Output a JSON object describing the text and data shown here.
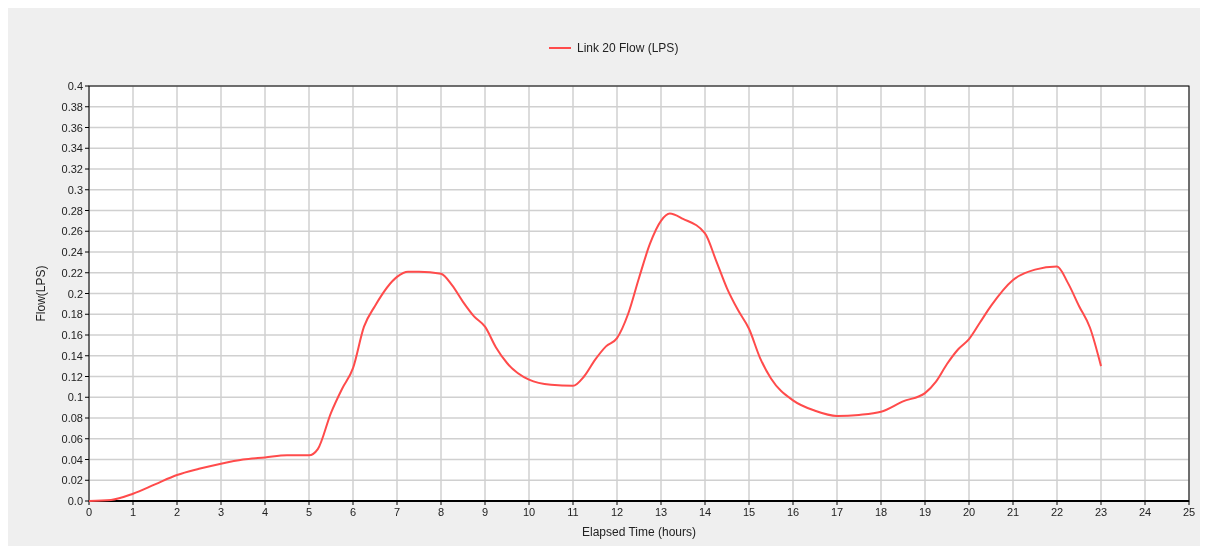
{
  "chart_data": {
    "type": "line",
    "xlabel": "Elapsed Time (hours)",
    "ylabel": "Flow(LPS)",
    "xlim": [
      0,
      25
    ],
    "xticks": [
      0,
      1,
      2,
      3,
      4,
      5,
      6,
      7,
      8,
      9,
      10,
      11,
      12,
      13,
      14,
      15,
      16,
      17,
      18,
      19,
      20,
      21,
      22,
      23,
      24,
      25
    ],
    "ylim": [
      0,
      0.4
    ],
    "yticks": [
      {
        "value": 0,
        "label": "0.0"
      },
      0.02,
      0.04,
      0.06,
      0.08,
      0.1,
      0.12,
      0.14,
      0.16,
      0.18,
      0.2,
      0.22,
      0.24,
      0.26,
      0.28,
      0.3,
      0.32,
      0.34,
      0.36,
      0.38,
      0.4
    ],
    "grid": true,
    "legend": "top",
    "marker": "none",
    "line_style": "solid",
    "series": [
      {
        "name": "Link 20 Flow (LPS)",
        "color": "#ff4b4b",
        "x": [
          0,
          0.5,
          1,
          1.5,
          2,
          2.5,
          3,
          3.5,
          4,
          4.5,
          5,
          5.2,
          5.5,
          5.75,
          6,
          6.25,
          6.5,
          7,
          7.25,
          7.5,
          8,
          8.25,
          8.5,
          8.75,
          9,
          9.25,
          9.5,
          10,
          10.5,
          11,
          11.25,
          11.5,
          11.75,
          12,
          12.25,
          12.5,
          12.75,
          13,
          13.2,
          13.5,
          14,
          14.25,
          14.5,
          14.75,
          15,
          15.25,
          15.5,
          16,
          16.5,
          17,
          17.5,
          18,
          18.5,
          19,
          19.25,
          19.5,
          19.75,
          20,
          20.25,
          20.5,
          21,
          21.5,
          22,
          22.25,
          22.5,
          22.75,
          23
        ],
        "values": [
          0,
          0.001,
          0.007,
          0.016,
          0.025,
          0.031,
          0.036,
          0.04,
          0.042,
          0.044,
          0.044,
          0.05,
          0.085,
          0.108,
          0.128,
          0.168,
          0.188,
          0.216,
          0.221,
          0.221,
          0.219,
          0.208,
          0.192,
          0.178,
          0.168,
          0.148,
          0.133,
          0.117,
          0.112,
          0.111,
          0.12,
          0.136,
          0.149,
          0.157,
          0.18,
          0.215,
          0.248,
          0.27,
          0.277,
          0.272,
          0.258,
          0.232,
          0.205,
          0.184,
          0.166,
          0.138,
          0.118,
          0.097,
          0.087,
          0.082,
          0.083,
          0.086,
          0.096,
          0.104,
          0.115,
          0.132,
          0.146,
          0.156,
          0.172,
          0.188,
          0.213,
          0.223,
          0.226,
          0.21,
          0.188,
          0.167,
          0.13
        ]
      }
    ]
  }
}
